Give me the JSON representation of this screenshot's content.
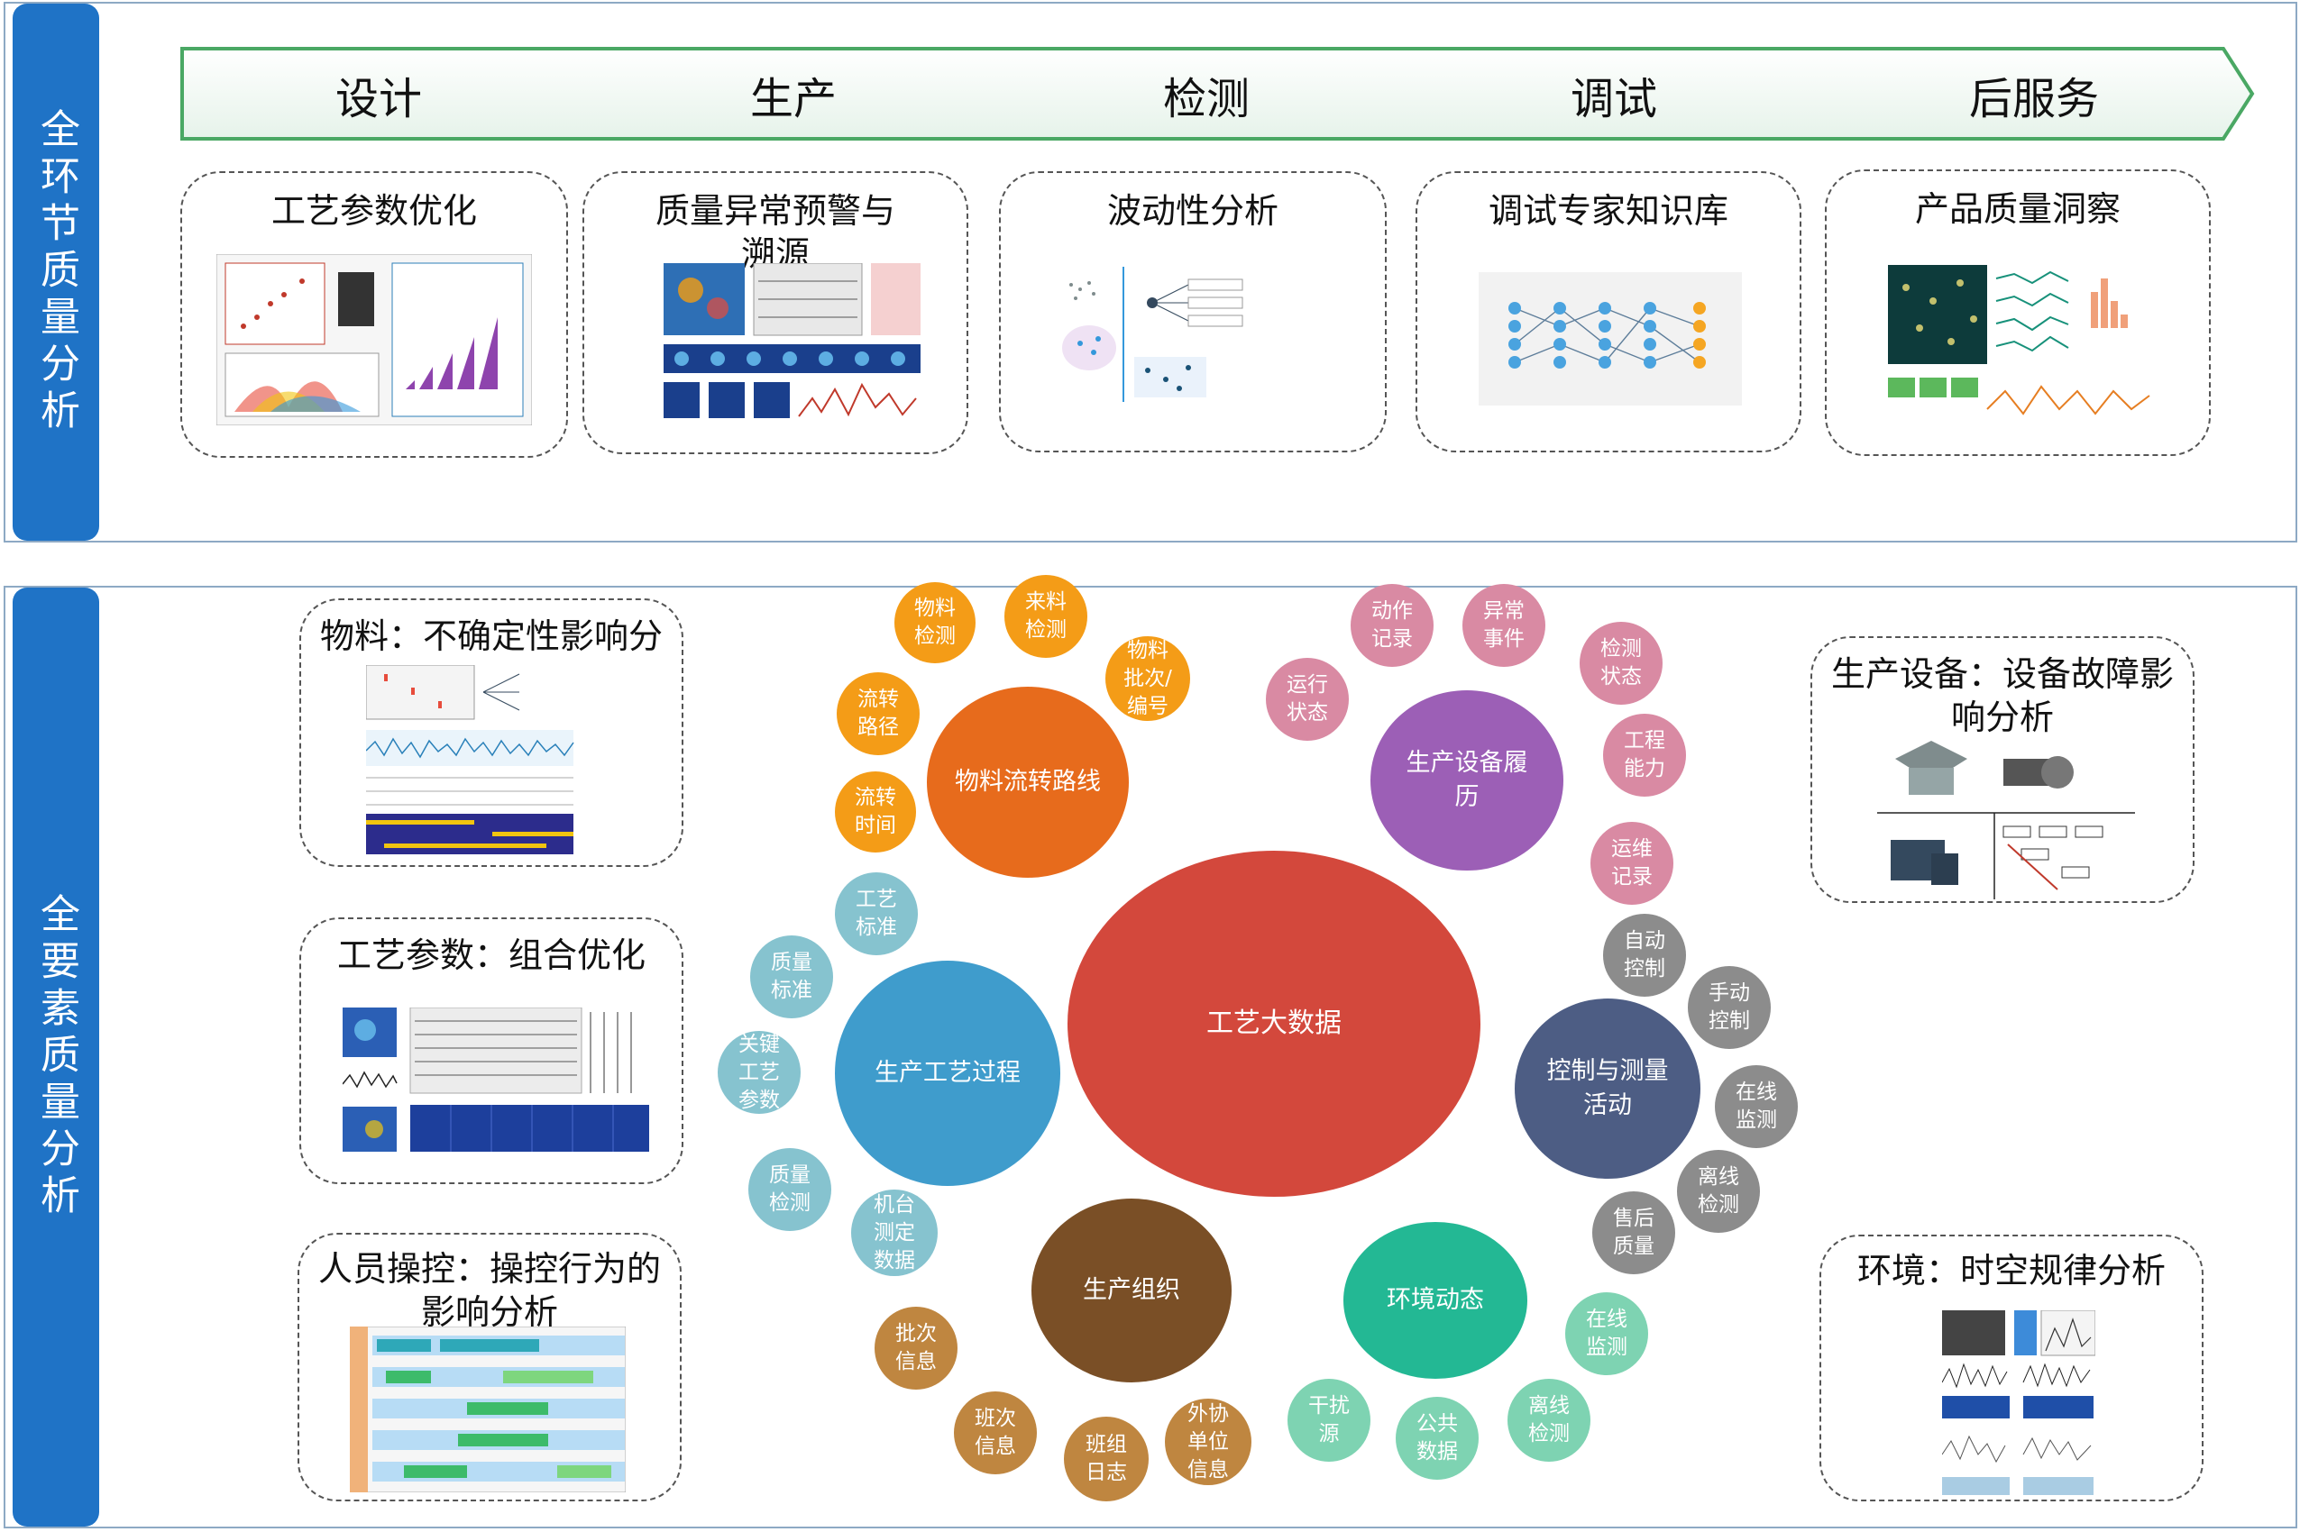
{
  "top_sidebar_text": "全环节质量分析",
  "bottom_sidebar_text": "全要素质量分析",
  "stages": [
    "设计",
    "生产",
    "检测",
    "调试",
    "后服务"
  ],
  "top_cards": [
    "工艺参数优化",
    "质量异常预警与\n溯源",
    "波动性分析",
    "调试专家知识库",
    "产品质量洞察"
  ],
  "left_cards": [
    "物料：不确定性影响分\n析",
    "工艺参数：组合优化",
    "人员操控：操控行为的\n影响分析"
  ],
  "right_cards": [
    "生产设备：设备故障影\n响分析",
    "环境：时空规律分析"
  ],
  "bubbles": {
    "center": "工艺大数据",
    "wuliao": {
      "main": "物料流转路线",
      "items": [
        "物料\n检测",
        "来料\n检测",
        "物料\n批次/\n编号",
        "流转\n路径",
        "流转\n时间"
      ]
    },
    "shebei": {
      "main": "生产设备履\n历",
      "items": [
        "动作\n记录",
        "异常\n事件",
        "检测\n状态",
        "运行\n状态",
        "工程\n能力",
        "运维\n记录"
      ]
    },
    "gongyi": {
      "main": "生产工艺过程",
      "items": [
        "工艺\n标准",
        "质量\n标准",
        "关键\n工艺\n参数",
        "质量\n检测",
        "机台\n测定\n数据"
      ]
    },
    "kongzhi": {
      "main": "控制与测量\n活动",
      "items": [
        "自动\n控制",
        "手动\n控制",
        "在线\n监测",
        "离线\n检测",
        "售后\n质量"
      ]
    },
    "zuzhi": {
      "main": "生产组织",
      "items": [
        "批次\n信息",
        "班次\n信息",
        "班组\n日志",
        "外协\n单位\n信息"
      ]
    },
    "huanjing": {
      "main": "环境动态",
      "items": [
        "在线\n监测",
        "离线\n检测",
        "公共\n数据",
        "干扰\n源"
      ]
    }
  },
  "colors": {
    "sidebar": "#1f73c6",
    "center": "#d3483c",
    "wuliao_main": "#e76b1c",
    "wuliao_small": "#f49c17",
    "shebei_main": "#9c5fb6",
    "shebei_small": "#d98aa3",
    "gongyi_main": "#3f9ccc",
    "gongyi_small": "#86c3cf",
    "kongzhi_main": "#4d5d84",
    "kongzhi_small": "#8c8c8c",
    "zuzhi_main": "#7a4f26",
    "zuzhi_small": "#bf8640",
    "huanjing_main": "#23b894",
    "huanjing_small": "#7ed3b2"
  }
}
